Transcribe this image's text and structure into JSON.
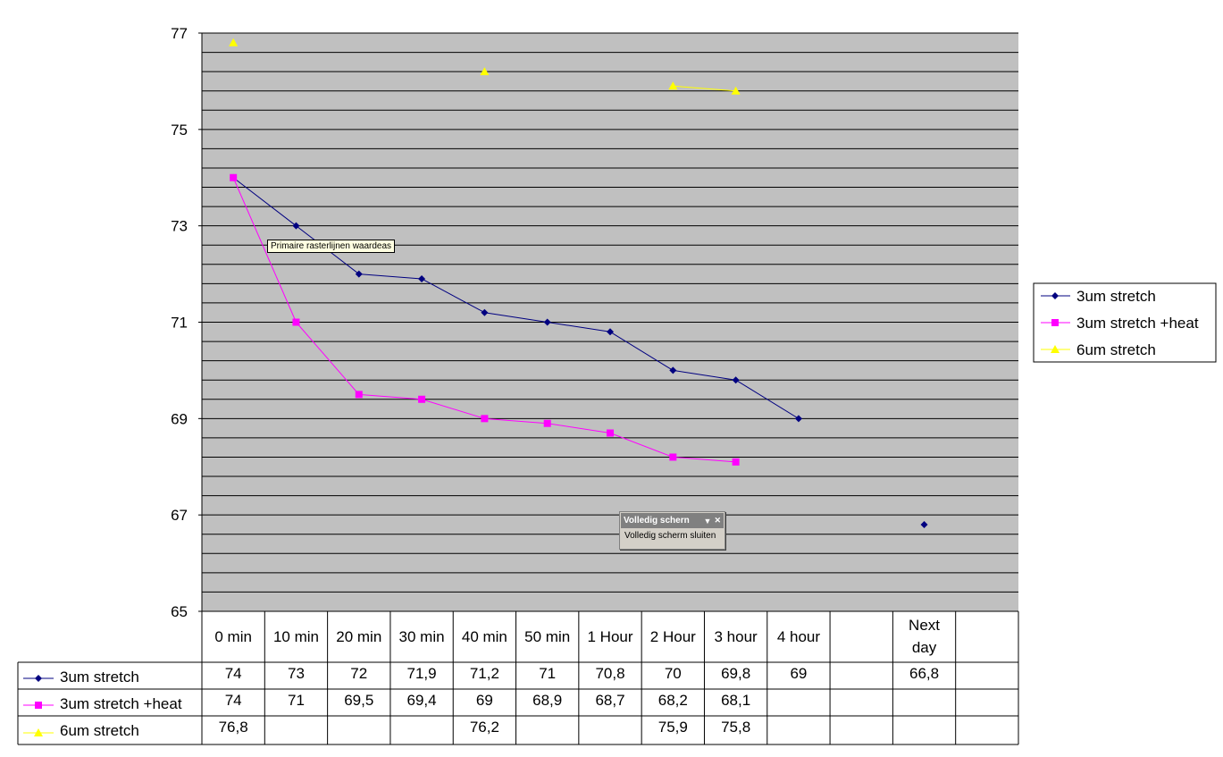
{
  "chart_data": {
    "type": "line",
    "title": "",
    "xlabel": "",
    "ylabel": "",
    "ylim": [
      65,
      77
    ],
    "yticks": [
      65,
      67,
      69,
      71,
      73,
      75,
      77
    ],
    "categories": [
      "0 min",
      "10 min",
      "20 min",
      "30 min",
      "40 min",
      "50 min",
      "1 Hour",
      "2 Hour",
      "3 hour",
      "4 hour",
      "",
      "Next day",
      ""
    ],
    "category_lines": [
      [
        "0 min"
      ],
      [
        "10 min"
      ],
      [
        "20 min"
      ],
      [
        "30 min"
      ],
      [
        "40 min"
      ],
      [
        "50 min"
      ],
      [
        "1 Hour"
      ],
      [
        "2 Hour"
      ],
      [
        "3 hour"
      ],
      [
        "4 hour"
      ],
      [
        ""
      ],
      [
        "Next",
        "day"
      ],
      [
        ""
      ]
    ],
    "series": [
      {
        "name": "3um stretch",
        "color": "#000080",
        "marker": "diamond",
        "values": [
          74,
          73,
          72,
          71.9,
          71.2,
          71,
          70.8,
          70,
          69.8,
          69,
          null,
          66.8,
          null
        ],
        "labels": [
          "74",
          "73",
          "72",
          "71,9",
          "71,2",
          "71",
          "70,8",
          "70",
          "69,8",
          "69",
          "",
          "66,8",
          ""
        ]
      },
      {
        "name": "3um stretch +heat",
        "color": "#ff00ff",
        "marker": "square",
        "values": [
          74,
          71,
          69.5,
          69.4,
          69,
          68.9,
          68.7,
          68.2,
          68.1,
          null,
          null,
          null,
          null
        ],
        "labels": [
          "74",
          "71",
          "69,5",
          "69,4",
          "69",
          "68,9",
          "68,7",
          "68,2",
          "68,1",
          "",
          "",
          "",
          ""
        ]
      },
      {
        "name": "6um stretch",
        "color": "#ffff00",
        "marker": "triangle",
        "values": [
          76.8,
          null,
          null,
          null,
          76.2,
          null,
          null,
          75.9,
          75.8,
          null,
          null,
          null,
          null
        ],
        "labels": [
          "76,8",
          "",
          "",
          "",
          "76,2",
          "",
          "",
          "75,9",
          "75,8",
          "",
          "",
          "",
          ""
        ]
      }
    ],
    "plot_background": "#c0c0c0",
    "grid": true,
    "legend_position": "right",
    "data_table": true
  },
  "tooltip": {
    "text": "Primaire rasterlijnen waardeas"
  },
  "fullscreen_toolbar": {
    "title": "Volledig schern",
    "close_label": "Volledig scherm sluiten"
  }
}
